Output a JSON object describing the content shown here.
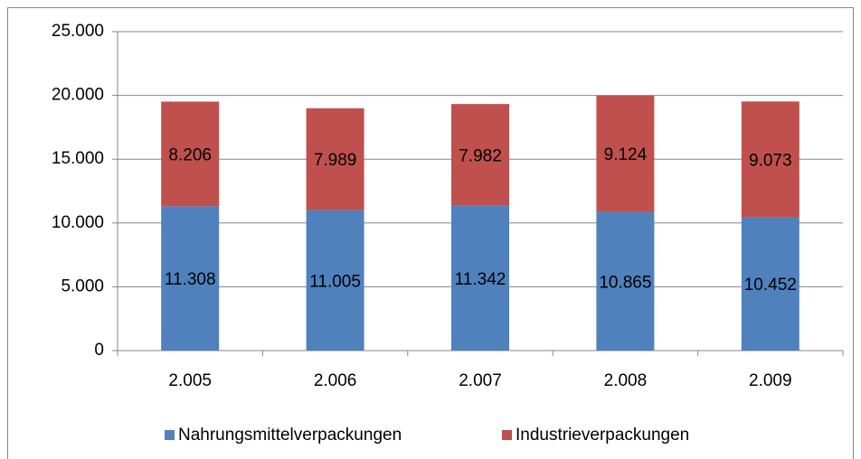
{
  "chart_data": {
    "type": "stacked_bar",
    "categories": [
      "2.005",
      "2.006",
      "2.007",
      "2.008",
      "2.009"
    ],
    "series": [
      {
        "name": "Nahrungsmittelverpackungen",
        "color": "#4f81bd",
        "values": [
          11308,
          11005,
          11342,
          10865,
          10452
        ],
        "value_labels": [
          "11.308",
          "11.005",
          "11.342",
          "10.865",
          "10.452"
        ]
      },
      {
        "name": "Industrieverpackungen",
        "color": "#c0504d",
        "values": [
          8206,
          7989,
          7982,
          9124,
          9073
        ],
        "value_labels": [
          "8.206",
          "7.989",
          "7.982",
          "9.124",
          "9.073"
        ]
      }
    ],
    "ylim": [
      0,
      25000
    ],
    "yticks": [
      0,
      {
        "value": 5000,
        "label": "5.000"
      },
      {
        "value": 10000,
        "label": "10.000"
      },
      {
        "value": 15000,
        "label": "15.000"
      },
      {
        "value": 20000,
        "label": "20.000"
      },
      {
        "value": 25000,
        "label": "25.000"
      }
    ],
    "grid": true,
    "legend": "bottom"
  }
}
